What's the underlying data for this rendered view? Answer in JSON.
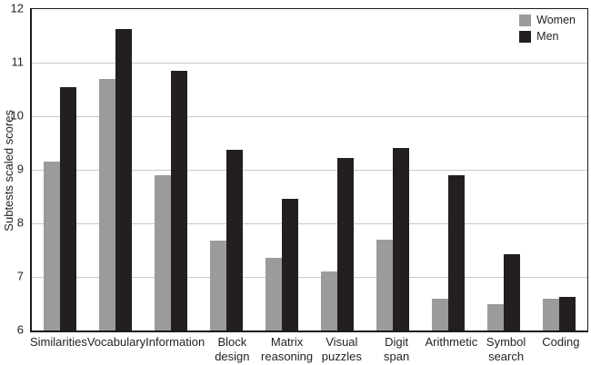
{
  "figure": {
    "background": "#ffffff"
  },
  "y_axis": {
    "title": "Subtests scaled scores",
    "min": 6,
    "max": 12,
    "ticks": [
      6,
      7,
      8,
      9,
      10,
      11,
      12
    ]
  },
  "legend": {
    "items": [
      {
        "label": "Women",
        "color": "#9b9b9b"
      },
      {
        "label": "Men",
        "color": "#231f20"
      }
    ]
  },
  "colors": {
    "women_bar": "#9b9b9b",
    "men_bar": "#231f20",
    "gridline": "#c9c9c9",
    "axis": "#1a1a1a",
    "text": "#231f20"
  },
  "chart_data": {
    "type": "bar",
    "title": "",
    "xlabel": "",
    "ylabel": "Subtests scaled scores",
    "ylim": [
      6,
      12
    ],
    "y_ticks": [
      6,
      7,
      8,
      9,
      10,
      11,
      12
    ],
    "grid": "horizontal",
    "legend_position": "top-right-inside",
    "categories": [
      "Similarities",
      "Vocabulary",
      "Information",
      "Block design",
      "Matrix reasoning",
      "Visual puzzles",
      "Digit span",
      "Arithmetic",
      "Symbol search",
      "Coding"
    ],
    "category_label_lines": [
      [
        "Similarities"
      ],
      [
        "Vocabulary"
      ],
      [
        "Information"
      ],
      [
        "Block",
        "design"
      ],
      [
        "Matrix",
        "reasoning"
      ],
      [
        "Visual",
        "puzzles"
      ],
      [
        "Digit",
        "span"
      ],
      [
        "Arithmetic"
      ],
      [
        "Symbol",
        "search"
      ],
      [
        "Coding"
      ]
    ],
    "series": [
      {
        "name": "Women",
        "color": "#9b9b9b",
        "values": [
          9.15,
          10.7,
          8.9,
          7.67,
          7.35,
          7.1,
          7.7,
          6.6,
          6.5,
          6.6
        ]
      },
      {
        "name": "Men",
        "color": "#231f20",
        "values": [
          10.55,
          11.62,
          10.85,
          9.38,
          8.45,
          9.22,
          9.4,
          8.9,
          7.42,
          6.62
        ]
      }
    ]
  }
}
